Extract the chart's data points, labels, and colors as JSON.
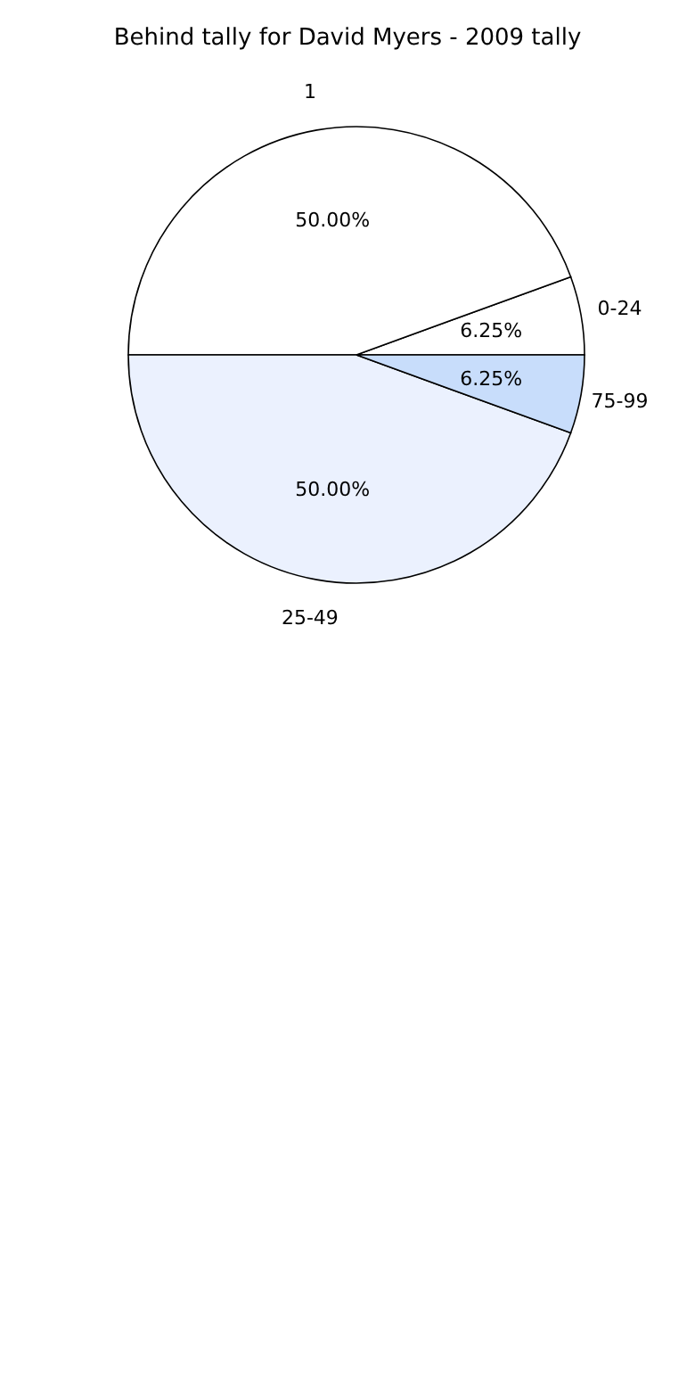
{
  "chart_data": {
    "type": "pie",
    "title": "Behind tally for David Myers - 2009 tally",
    "categories": [
      "0-24",
      "1",
      "25-49",
      "75-99"
    ],
    "values": [
      6.25,
      50,
      50,
      6.25
    ],
    "value_labels": [
      "6.25%",
      "50.00%",
      "50.00%",
      "6.25%"
    ],
    "colors": [
      "#ffffff",
      "#ffffff",
      "#ebf1fe",
      "#c8ddfb"
    ]
  }
}
